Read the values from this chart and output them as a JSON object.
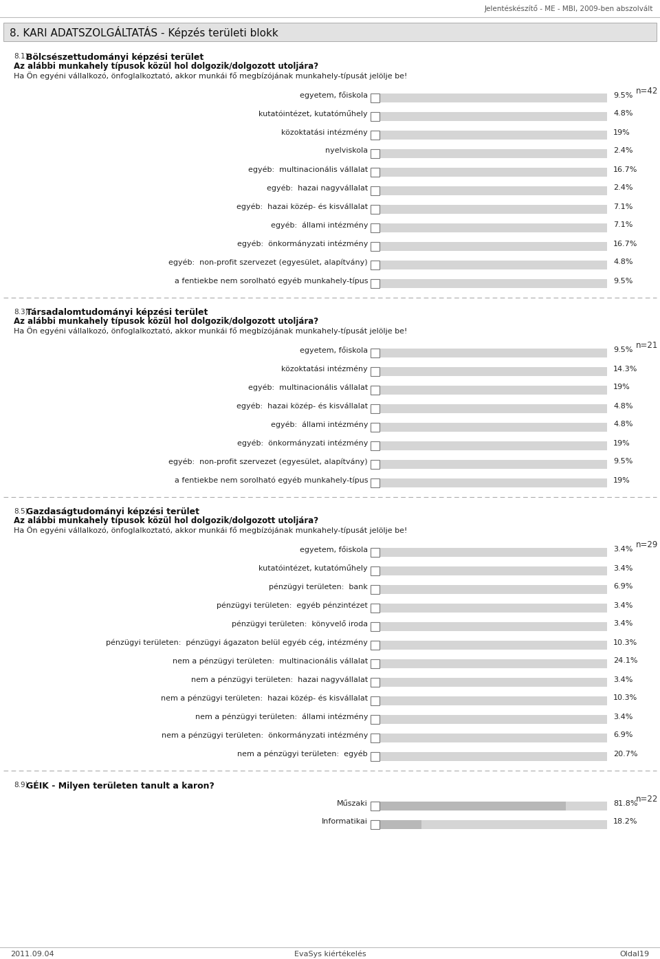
{
  "header_text": "Jelentéskészítő - ME - MBI, 2009-ben abszolvált",
  "section_title": "8. KARI ADATSZOLGÁLTATÁS - Képzés területi blokk",
  "section1_num": "8.1)",
  "section1_title": "Bölcsészettudományi képzési terület",
  "section1_q1": "Az alábbi munkahely típusok közül hol dolgozik/dolgozott utoljára?",
  "section1_q2": "Ha Ön egyéni vállalkozó, önfoglalkoztató, akkor munkái fő megbízójának munkahely-típusát jelölje be!",
  "section1_n": "n=42",
  "section1_labels": [
    "egyetem, főiskola",
    "kutatóintézet, kutatóműhely",
    "közoktatási intézmény",
    "nyelviskola",
    "egyéb:  multinacionális vállalat",
    "egyéb:  hazai nagyvállalat",
    "egyéb:  hazai közép- és kisvállalat",
    "egyéb:  állami intézmény",
    "egyéb:  önkormányzati intézmény",
    "egyéb:  non-profit szervezet (egyesület, alapítvány)",
    "a fentiekbe nem sorolható egyéb munkahely-típus"
  ],
  "section1_values": [
    9.5,
    4.8,
    19.0,
    2.4,
    16.7,
    2.4,
    7.1,
    7.1,
    16.7,
    4.8,
    9.5
  ],
  "section1_value_labels": [
    "9.5%",
    "4.8%",
    "19%",
    "2.4%",
    "16.7%",
    "2.4%",
    "7.1%",
    "7.1%",
    "16.7%",
    "4.8%",
    "9.5%"
  ],
  "section2_num": "8.3)",
  "section2_title": "Társadalomtudományi képzési terület",
  "section2_q1": "Az alábbi munkahely típusok közül hol dolgozik/dolgozott utoljára?",
  "section2_q2": "Ha Ön egyéni vállalkozó, önfoglalkoztató, akkor munkái fő megbízójának munkahely-típusát jelölje be!",
  "section2_n": "n=21",
  "section2_labels": [
    "egyetem, főiskola",
    "közoktatási intézmény",
    "egyéb:  multinacionális vállalat",
    "egyéb:  hazai közép- és kisvállalat",
    "egyéb:  állami intézmény",
    "egyéb:  önkormányzati intézmény",
    "egyéb:  non-profit szervezet (egyesület, alapítvány)",
    "a fentiekbe nem sorolható egyéb munkahely-típus"
  ],
  "section2_values": [
    9.5,
    14.3,
    19.0,
    4.8,
    4.8,
    19.0,
    9.5,
    19.0
  ],
  "section2_value_labels": [
    "9.5%",
    "14.3%",
    "19%",
    "4.8%",
    "4.8%",
    "19%",
    "9.5%",
    "19%"
  ],
  "section3_num": "8.5)",
  "section3_title": "Gazdaságtudományi képzési terület",
  "section3_q1": "Az alábbi munkahely típusok közül hol dolgozik/dolgozott utoljára?",
  "section3_q2": "Ha Ön egyéni vállalkozó, önfoglalkoztató, akkor munkái fő megbízójának munkahely-típusát jelölje be!",
  "section3_n": "n=29",
  "section3_labels": [
    "egyetem, főiskola",
    "kutatóintézet, kutatóműhely",
    "pénzügyi területen:  bank",
    "pénzügyi területen:  egyéb pénzintézet",
    "pénzügyi területen:  könyvelő iroda",
    "pénzügyi területen:  pénzügyi ágazaton belül egyéb cég, intézmény",
    "nem a pénzügyi területen:  multinacionális vállalat",
    "nem a pénzügyi területen:  hazai nagyvállalat",
    "nem a pénzügyi területen:  hazai közép- és kisvállalat",
    "nem a pénzügyi területen:  állami intézmény",
    "nem a pénzügyi területen:  önkormányzati intézmény",
    "nem a pénzügyi területen:  egyéb"
  ],
  "section3_values": [
    3.4,
    3.4,
    6.9,
    3.4,
    3.4,
    10.3,
    24.1,
    3.4,
    10.3,
    3.4,
    6.9,
    20.7
  ],
  "section3_value_labels": [
    "3.4%",
    "3.4%",
    "6.9%",
    "3.4%",
    "3.4%",
    "10.3%",
    "24.1%",
    "3.4%",
    "10.3%",
    "3.4%",
    "6.9%",
    "20.7%"
  ],
  "section4_num": "8.9)",
  "section4_title": "GÉIK - Milyen területen tanult a karon?",
  "section4_n": "n=22",
  "section4_labels": [
    "Műszaki",
    "Informatikai"
  ],
  "section4_values": [
    81.8,
    18.2
  ],
  "section4_value_labels": [
    "81.8%",
    "18.2%"
  ],
  "footer_left": "2011.09.04",
  "footer_center": "EvaSys kiértékelés",
  "footer_right": "Oldal19"
}
